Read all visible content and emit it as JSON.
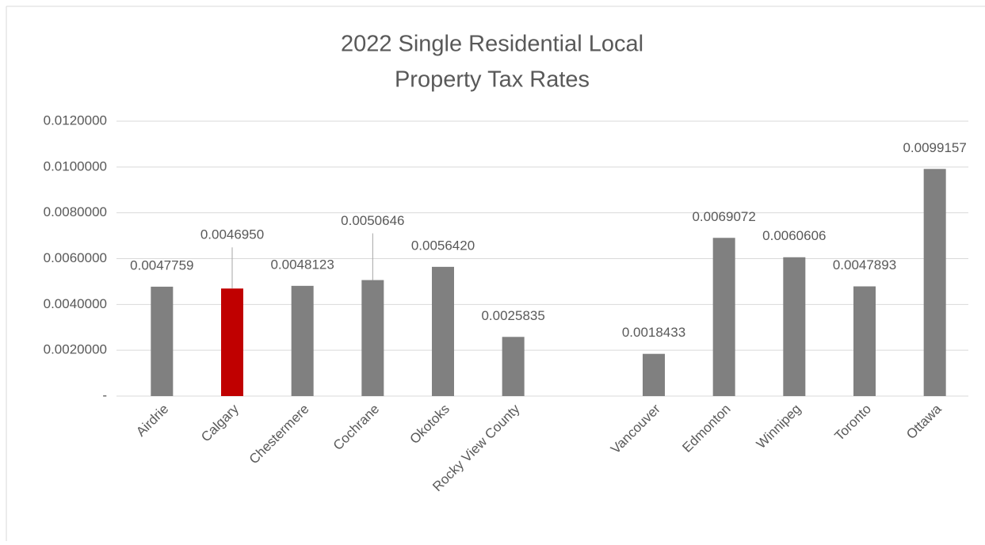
{
  "chart_data": {
    "type": "bar",
    "title": [
      "2022 Single Residential Local",
      "Property Tax Rates"
    ],
    "categories": [
      "Airdrie",
      "Calgary",
      "Chestermere",
      "Cochrane",
      "Okotoks",
      "Rocky View County",
      null,
      "Vancouver",
      "Edmonton",
      "Winnipeg",
      "Toronto",
      "Ottawa"
    ],
    "values": [
      0.0047759,
      0.004695,
      0.0048123,
      0.0050646,
      0.005642,
      0.0025835,
      null,
      0.0018433,
      0.0069072,
      0.0060606,
      0.0047893,
      0.0099157
    ],
    "value_labels": [
      "0.0047759",
      "0.0046950",
      "0.0048123",
      "0.0050646",
      "0.0056420",
      "0.0025835",
      null,
      "0.0018433",
      "0.0069072",
      "0.0060606",
      "0.0047893",
      "0.0099157"
    ],
    "colors": [
      "#808080",
      "#c00000",
      "#808080",
      "#808080",
      "#808080",
      "#808080",
      null,
      "#808080",
      "#808080",
      "#808080",
      "#808080",
      "#808080"
    ],
    "ylim": [
      0,
      0.012
    ],
    "yticks": [
      {
        "value": 0,
        "label": "-"
      },
      {
        "value": 0.002,
        "label": "0.0020000"
      },
      {
        "value": 0.004,
        "label": "0.0040000"
      },
      {
        "value": 0.006,
        "label": "0.0060000"
      },
      {
        "value": 0.008,
        "label": "0.0080000"
      },
      {
        "value": 0.01,
        "label": "0.0100000"
      },
      {
        "value": 0.012,
        "label": "0.0120000"
      }
    ],
    "grid": true
  }
}
